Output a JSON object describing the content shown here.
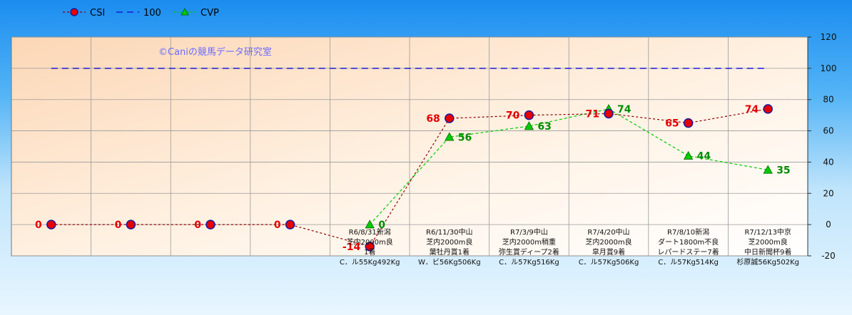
{
  "chart_data": {
    "type": "line",
    "watermark": "©Caniの競馬データ研究室",
    "categories": [
      "",
      "",
      "",
      "",
      [
        "R6/8/31新潟",
        "芝内2000m良",
        "1着",
        "C．ル55Kg492Kg"
      ],
      [
        "R6/11/30中山",
        "芝内2000m良",
        "葉牡丹賞1着",
        "W．ビ56Kg506Kg"
      ],
      [
        "R7/3/9中山",
        "芝内2000m稍重",
        "弥生賞ディープ2着",
        "C．ル57Kg516Kg"
      ],
      [
        "R7/4/20中山",
        "芝内2000m良",
        "皐月賞9着",
        "C．ル57Kg506Kg"
      ],
      [
        "R7/8/10新潟",
        "ダート1800m不良",
        "レパードステー7着",
        "C．ル57Kg514Kg"
      ],
      [
        "R7/12/13中京",
        "芝2000m良",
        "中日新聞杯9着",
        "杉原誠56Kg502Kg"
      ]
    ],
    "series": [
      {
        "name": "CSI",
        "color": "#e60000",
        "values": [
          0,
          0,
          0,
          0,
          -14,
          68,
          70,
          71,
          65,
          74
        ],
        "labels": [
          "0",
          "0",
          "0",
          "0",
          "-14",
          "68",
          "70",
          "71",
          "65",
          "74"
        ]
      },
      {
        "name": "100",
        "color": "#1a1ad4",
        "values": [
          100,
          100,
          100,
          100,
          100,
          100,
          100,
          100,
          100,
          100
        ]
      },
      {
        "name": "CVP",
        "color": "#00cc00",
        "values": [
          null,
          null,
          null,
          null,
          0,
          56,
          63,
          74,
          44,
          35
        ],
        "labels": [
          "",
          "",
          "",
          "",
          "0",
          "56",
          "63",
          "74",
          "44",
          "35"
        ]
      }
    ],
    "ylim": [
      -20,
      120
    ],
    "yticks": [
      "-20",
      "0",
      "20",
      "40",
      "60",
      "80",
      "100",
      "120"
    ],
    "grid": true,
    "legend": "top-left"
  }
}
